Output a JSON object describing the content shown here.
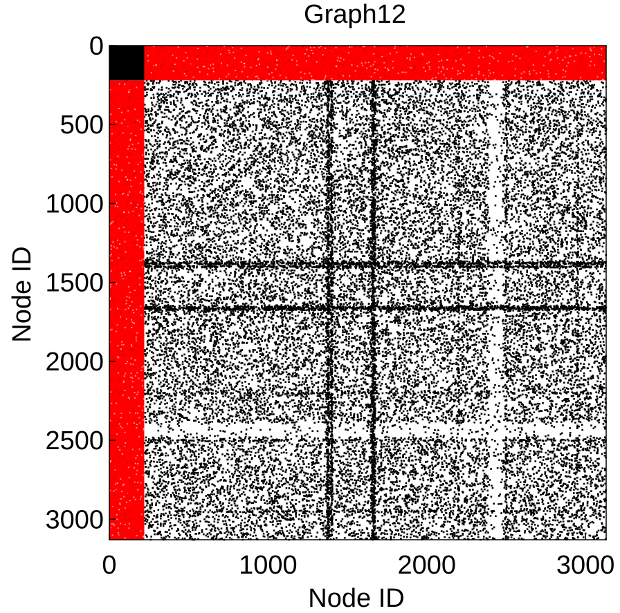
{
  "chart_data": {
    "type": "scatter",
    "title": "Graph12",
    "xlabel": "Node ID",
    "ylabel": "Node ID",
    "xlim": [
      0,
      3130
    ],
    "ylim": [
      0,
      3130
    ],
    "y_inverted": true,
    "xticks": [
      0,
      1000,
      2000,
      3000
    ],
    "yticks": [
      0,
      500,
      1000,
      1500,
      2000,
      2500,
      3000
    ],
    "xtick_labels": [
      "0",
      "1000",
      "2000",
      "3000"
    ],
    "ytick_labels": [
      "0",
      "500",
      "1000",
      "1500",
      "2000",
      "2500",
      "3000"
    ],
    "grid": false,
    "legend": "none",
    "series": [
      {
        "color": "#000000",
        "dense_block": [
          0,
          220
        ],
        "dense_lines": [
          1380,
          1400,
          1660,
          1670
        ],
        "sparse_regions": [
          [
            2390,
            2480
          ]
        ]
      },
      {
        "color": "#ff0000",
        "band": [
          0,
          220
        ]
      }
    ]
  }
}
